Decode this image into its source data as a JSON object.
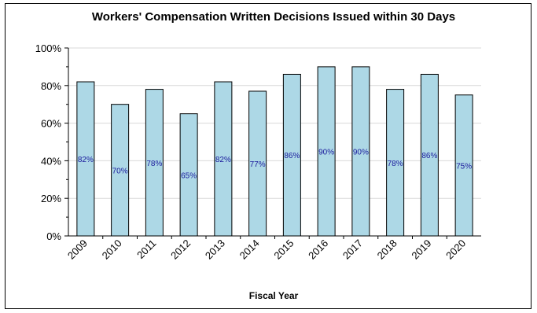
{
  "chart_data": {
    "type": "bar",
    "title": "Workers' Compensation Written Decisions Issued within 30 Days",
    "xlabel": "Fiscal Year",
    "ylabel": "",
    "categories": [
      "2009",
      "2010",
      "2011",
      "2012",
      "2013",
      "2014",
      "2015",
      "2016",
      "2017",
      "2018",
      "2019",
      "2020"
    ],
    "values": [
      82,
      70,
      78,
      65,
      82,
      77,
      86,
      90,
      90,
      78,
      86,
      75
    ],
    "data_labels": [
      "82%",
      "70%",
      "78%",
      "65%",
      "82%",
      "77%",
      "86%",
      "90%",
      "90%",
      "78%",
      "86%",
      "75%"
    ],
    "y_ticks": [
      0,
      20,
      40,
      60,
      80,
      100
    ],
    "y_tick_labels": [
      "0%",
      "20%",
      "40%",
      "60%",
      "80%",
      "100%"
    ],
    "ylim": [
      0,
      100
    ],
    "grid": true,
    "legend": "none",
    "bar_color": "#add8e6",
    "label_color": "#1a1a9c"
  }
}
